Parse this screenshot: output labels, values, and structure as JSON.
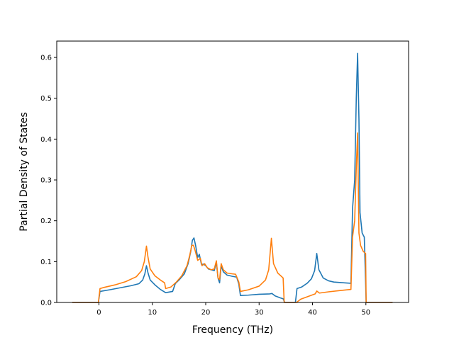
{
  "chart_data": {
    "type": "line",
    "title": "",
    "xlabel": "Frequency (THz)",
    "ylabel": "Partial Density of States",
    "xlim": [
      -7.9,
      58
    ],
    "ylim": [
      0,
      0.64
    ],
    "xticks": [
      0,
      10,
      20,
      30,
      40,
      50
    ],
    "yticks": [
      0.0,
      0.1,
      0.2,
      0.3,
      0.4,
      0.5,
      0.6
    ],
    "xtick_labels": [
      "0",
      "10",
      "20",
      "30",
      "40",
      "50"
    ],
    "ytick_labels": [
      "0.0",
      "0.1",
      "0.2",
      "0.3",
      "0.4",
      "0.5",
      "0.6"
    ],
    "grid": false,
    "legend": "none",
    "series": [
      {
        "color": "#1f77b4",
        "points": [
          [
            -5,
            0
          ],
          [
            -0.1,
            0
          ],
          [
            0.2,
            0.027
          ],
          [
            2,
            0.031
          ],
          [
            4,
            0.036
          ],
          [
            6,
            0.041
          ],
          [
            7.5,
            0.046
          ],
          [
            8.2,
            0.055
          ],
          [
            8.6,
            0.07
          ],
          [
            8.9,
            0.09
          ],
          [
            9.2,
            0.072
          ],
          [
            9.6,
            0.055
          ],
          [
            10.5,
            0.043
          ],
          [
            11.5,
            0.032
          ],
          [
            12.5,
            0.024
          ],
          [
            13.8,
            0.027
          ],
          [
            14.3,
            0.046
          ],
          [
            15,
            0.055
          ],
          [
            16,
            0.07
          ],
          [
            16.7,
            0.095
          ],
          [
            17.2,
            0.125
          ],
          [
            17.5,
            0.152
          ],
          [
            17.8,
            0.158
          ],
          [
            18.1,
            0.14
          ],
          [
            18.5,
            0.11
          ],
          [
            18.8,
            0.118
          ],
          [
            19.2,
            0.093
          ],
          [
            19.6,
            0.094
          ],
          [
            20,
            0.09
          ],
          [
            20.5,
            0.082
          ],
          [
            21,
            0.08
          ],
          [
            21.6,
            0.078
          ],
          [
            22,
            0.098
          ],
          [
            22.3,
            0.06
          ],
          [
            22.6,
            0.048
          ],
          [
            22.9,
            0.09
          ],
          [
            23.3,
            0.075
          ],
          [
            24,
            0.067
          ],
          [
            25,
            0.064
          ],
          [
            25.8,
            0.062
          ],
          [
            26.2,
            0.045
          ],
          [
            26.5,
            0.017
          ],
          [
            28,
            0.018
          ],
          [
            30,
            0.02
          ],
          [
            32,
            0.021
          ],
          [
            32.4,
            0.022
          ],
          [
            33,
            0.016
          ],
          [
            34,
            0.011
          ],
          [
            34.5,
            0.009
          ],
          [
            34.8,
            0
          ],
          [
            36.8,
            0
          ],
          [
            37.1,
            0.034
          ],
          [
            38,
            0.038
          ],
          [
            39,
            0.047
          ],
          [
            39.8,
            0.058
          ],
          [
            40.4,
            0.078
          ],
          [
            40.8,
            0.12
          ],
          [
            41.2,
            0.08
          ],
          [
            42,
            0.06
          ],
          [
            43,
            0.053
          ],
          [
            44,
            0.05
          ],
          [
            46,
            0.048
          ],
          [
            47.2,
            0.047
          ],
          [
            47.5,
            0.23
          ],
          [
            47.9,
            0.3
          ],
          [
            48.2,
            0.5
          ],
          [
            48.45,
            0.61
          ],
          [
            48.7,
            0.45
          ],
          [
            48.9,
            0.22
          ],
          [
            49.3,
            0.17
          ],
          [
            49.7,
            0.16
          ],
          [
            49.95,
            0.05
          ],
          [
            50.05,
            0
          ],
          [
            55,
            0
          ]
        ]
      },
      {
        "color": "#ff7f0e",
        "points": [
          [
            -5,
            0
          ],
          [
            -0.1,
            0
          ],
          [
            0.2,
            0.034
          ],
          [
            1,
            0.037
          ],
          [
            3,
            0.043
          ],
          [
            5,
            0.051
          ],
          [
            7,
            0.063
          ],
          [
            8,
            0.078
          ],
          [
            8.5,
            0.1
          ],
          [
            8.9,
            0.138
          ],
          [
            9.2,
            0.11
          ],
          [
            9.6,
            0.082
          ],
          [
            10.5,
            0.065
          ],
          [
            11.5,
            0.055
          ],
          [
            12.3,
            0.048
          ],
          [
            12.5,
            0.034
          ],
          [
            13.5,
            0.038
          ],
          [
            14.5,
            0.05
          ],
          [
            15.5,
            0.065
          ],
          [
            16.5,
            0.09
          ],
          [
            17,
            0.115
          ],
          [
            17.4,
            0.14
          ],
          [
            17.7,
            0.14
          ],
          [
            18,
            0.128
          ],
          [
            18.5,
            0.103
          ],
          [
            19,
            0.108
          ],
          [
            19.3,
            0.09
          ],
          [
            19.8,
            0.095
          ],
          [
            20.3,
            0.085
          ],
          [
            21,
            0.08
          ],
          [
            21.6,
            0.082
          ],
          [
            22,
            0.102
          ],
          [
            22.3,
            0.06
          ],
          [
            22.6,
            0.056
          ],
          [
            22.9,
            0.095
          ],
          [
            23.3,
            0.08
          ],
          [
            24,
            0.072
          ],
          [
            25,
            0.07
          ],
          [
            25.6,
            0.069
          ],
          [
            26.2,
            0.05
          ],
          [
            26.5,
            0.027
          ],
          [
            28,
            0.031
          ],
          [
            30,
            0.04
          ],
          [
            31.2,
            0.055
          ],
          [
            31.8,
            0.08
          ],
          [
            32.3,
            0.157
          ],
          [
            32.7,
            0.095
          ],
          [
            33.5,
            0.072
          ],
          [
            34.5,
            0.06
          ],
          [
            34.7,
            0
          ],
          [
            37,
            0
          ],
          [
            37.8,
            0.008
          ],
          [
            40.5,
            0.021
          ],
          [
            40.8,
            0.028
          ],
          [
            41.3,
            0.023
          ],
          [
            43,
            0.026
          ],
          [
            45,
            0.029
          ],
          [
            47.2,
            0.032
          ],
          [
            47.5,
            0.16
          ],
          [
            47.9,
            0.2
          ],
          [
            48.2,
            0.33
          ],
          [
            48.45,
            0.415
          ],
          [
            48.7,
            0.17
          ],
          [
            49,
            0.14
          ],
          [
            49.5,
            0.125
          ],
          [
            49.95,
            0.12
          ],
          [
            50.05,
            0
          ],
          [
            55,
            0
          ]
        ]
      }
    ]
  }
}
